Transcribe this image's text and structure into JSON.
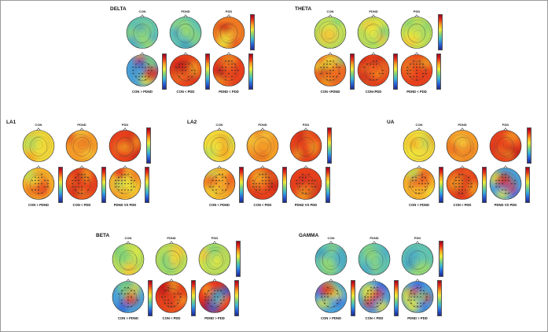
{
  "colors": {
    "colormap": [
      "#1a2a8c",
      "#2a5fd8",
      "#38b2d6",
      "#7dd37a",
      "#eeea3a",
      "#f5a422",
      "#e8321c",
      "#a0001a"
    ]
  },
  "panels": [
    {
      "title": "DELTA",
      "heads": [
        "CON",
        "PDND",
        "PDD"
      ],
      "comparisons": [
        "CON > PDND",
        "CON < PDD",
        "PDND < PDD"
      ],
      "top_maps": [
        "teal",
        "teal",
        "red-yellow"
      ],
      "bottom_maps": [
        "blue-mixed",
        "red",
        "red"
      ]
    },
    {
      "title": "THETA",
      "heads": [
        "CON",
        "PDND",
        "PDD"
      ],
      "comparisons": [
        "CON <PDND",
        "CON<PDD",
        "PDND < PDD"
      ],
      "top_maps": [
        "yellow-green",
        "yellow-green",
        "yellow-green"
      ],
      "bottom_maps": [
        "red-mixed",
        "red",
        "red"
      ]
    },
    {
      "title": "LA1",
      "heads": [
        "CON",
        "PDND",
        "PDD"
      ],
      "comparisons": [
        "CON < PDND",
        "CON < PDD",
        "PDND VS PDD"
      ],
      "top_maps": [
        "yellow",
        "orange",
        "red"
      ],
      "bottom_maps": [
        "yellow-red",
        "red",
        "yellow-red"
      ]
    },
    {
      "title": "LA2",
      "heads": [
        "CON",
        "PDND",
        "PDD"
      ],
      "comparisons": [
        "CON < PDND",
        "CON < PDD",
        "PDND VS PDD"
      ],
      "top_maps": [
        "yellow",
        "orange",
        "red"
      ],
      "bottom_maps": [
        "yellow-red",
        "red",
        "red"
      ]
    },
    {
      "title": "UA",
      "heads": [
        "CON",
        "PDND",
        "PDD"
      ],
      "comparisons": [
        "CON < PDND",
        "CON < PDD",
        "PDND VS PDD"
      ],
      "top_maps": [
        "yellow",
        "orange",
        "red"
      ],
      "bottom_maps": [
        "yellow-red",
        "red",
        "blue-mixed"
      ]
    },
    {
      "title": "BETA",
      "heads": [
        "CON",
        "PDND",
        "PDD"
      ],
      "comparisons": [
        "CON > PDND",
        "CON < PDD",
        "PDND > PDD"
      ],
      "top_maps": [
        "yellow-green",
        "yellow-green",
        "yellow-green"
      ],
      "bottom_maps": [
        "blue-mixed",
        "red",
        "red-blue"
      ]
    },
    {
      "title": "GAMMA",
      "heads": [
        "CON",
        "PDND",
        "PDD"
      ],
      "comparisons": [
        "CON > PDND",
        "CON < PDD",
        "PDND > PDD"
      ],
      "top_maps": [
        "teal",
        "teal",
        "teal"
      ],
      "bottom_maps": [
        "blue-mixed",
        "blue-mixed",
        "blue-mixed"
      ]
    }
  ]
}
